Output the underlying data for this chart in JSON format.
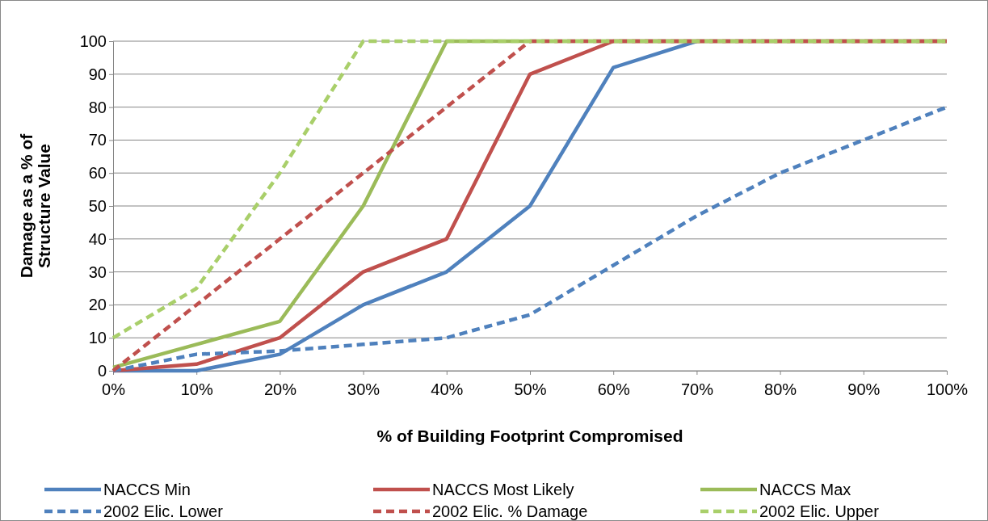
{
  "chart_data": {
    "type": "line",
    "xlabel": "% of Building Footprint Compromised",
    "ylabel": "Damage as a % of\nStructure Value",
    "x": [
      0,
      10,
      20,
      30,
      40,
      50,
      60,
      70,
      80,
      90,
      100
    ],
    "xlim": [
      0,
      100
    ],
    "xticks": [
      {
        "value": 0,
        "label": "0%"
      },
      {
        "value": 10,
        "label": "10%"
      },
      {
        "value": 20,
        "label": "20%"
      },
      {
        "value": 30,
        "label": "30%"
      },
      {
        "value": 40,
        "label": "40%"
      },
      {
        "value": 50,
        "label": "50%"
      },
      {
        "value": 60,
        "label": "60%"
      },
      {
        "value": 70,
        "label": "70%"
      },
      {
        "value": 80,
        "label": "80%"
      },
      {
        "value": 90,
        "label": "90%"
      },
      {
        "value": 100,
        "label": "100%"
      }
    ],
    "ylim": [
      0,
      100
    ],
    "yticks": [
      0,
      10,
      20,
      30,
      40,
      50,
      60,
      70,
      80,
      90,
      100
    ],
    "grid": "y",
    "legend": "bottom",
    "series": [
      {
        "name": "NACCS Min",
        "color": "#4f81bd",
        "line_style": "solid",
        "values": [
          0,
          0,
          5,
          20,
          30,
          50,
          92,
          100,
          null,
          null,
          null
        ]
      },
      {
        "name": "NACCS Most Likely",
        "color": "#c0504d",
        "line_style": "solid",
        "values": [
          0,
          2,
          10,
          30,
          40,
          90,
          100,
          100,
          100,
          100,
          100
        ]
      },
      {
        "name": "NACCS Max",
        "color": "#9bbb59",
        "line_style": "solid",
        "values": [
          1,
          8,
          15,
          50,
          100,
          100,
          100,
          100,
          100,
          100,
          100
        ]
      },
      {
        "name": "2002 Elic. Lower",
        "color": "#4f81bd",
        "line_style": "dashed",
        "values": [
          0,
          5,
          6,
          8,
          10,
          17,
          32,
          47,
          60,
          70,
          80
        ]
      },
      {
        "name": "2002 Elic. % Damage",
        "color": "#c0504d",
        "line_style": "dashed",
        "values": [
          0,
          20,
          40,
          60,
          80,
          100,
          100,
          100,
          100,
          100,
          100
        ]
      },
      {
        "name": "2002 Elic. Upper",
        "color": "#a9cf6a",
        "line_style": "dashed",
        "values": [
          10,
          25,
          60,
          100,
          100,
          100,
          100,
          100,
          100,
          100,
          100
        ]
      }
    ]
  }
}
